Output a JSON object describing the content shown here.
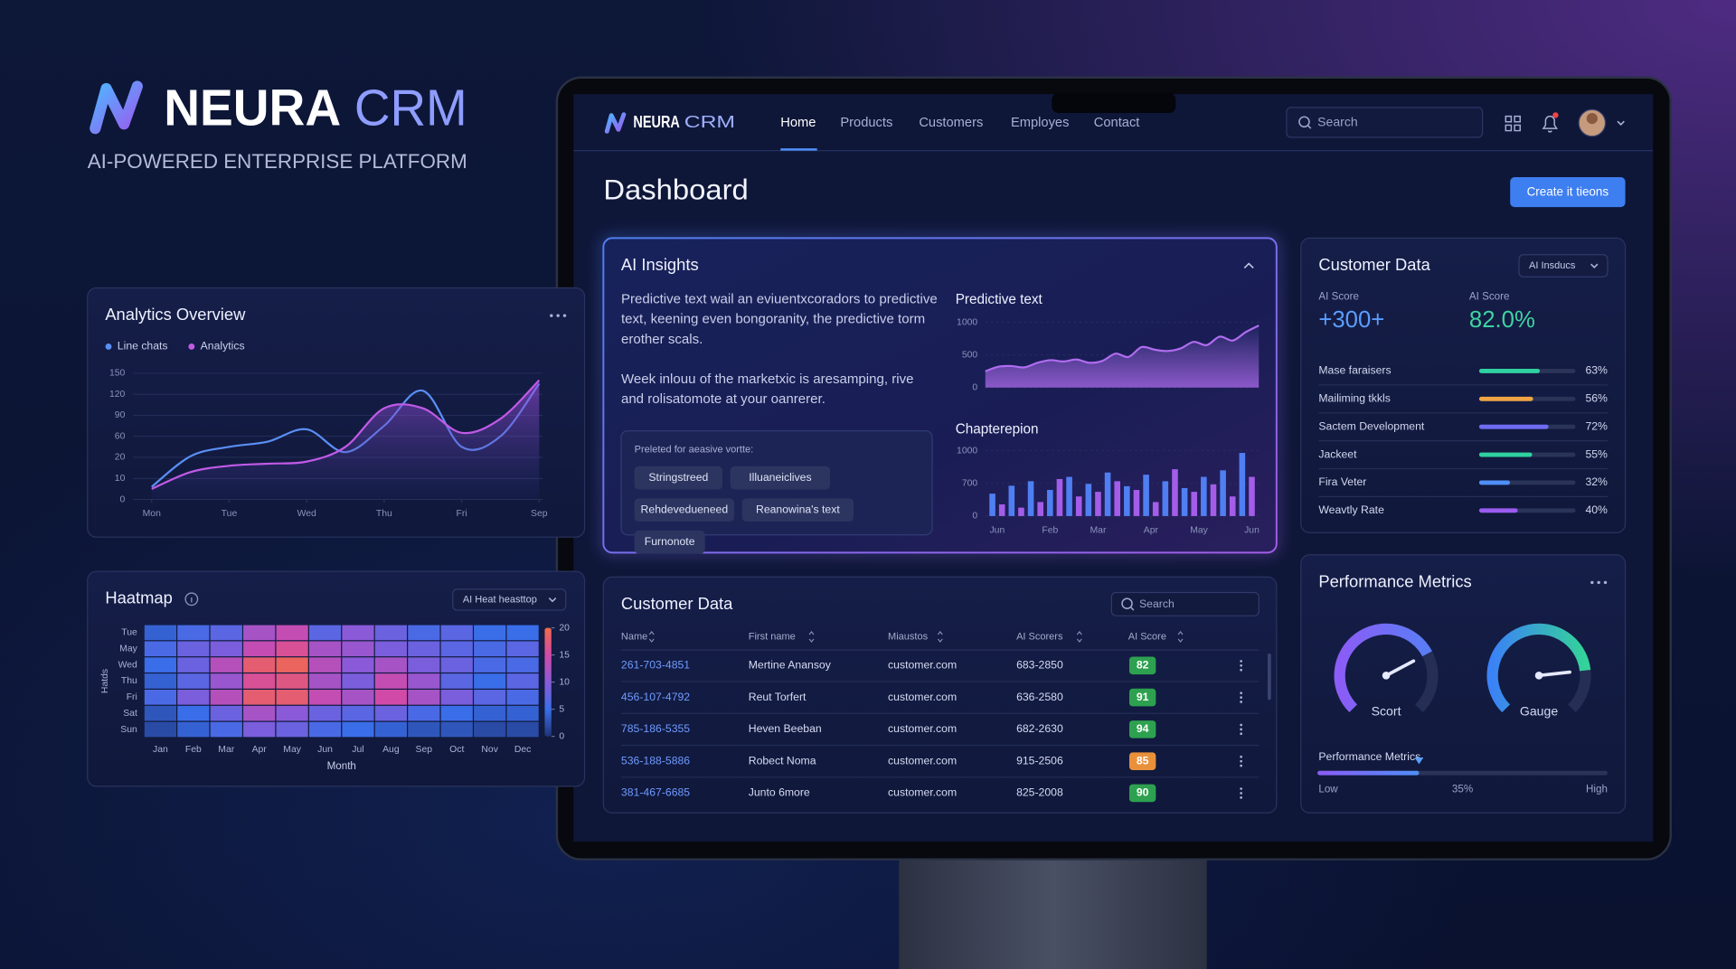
{
  "brand": {
    "name": "NEURA",
    "accent": "CRM",
    "tagline": "AI-POWERED ENTERPRISE PLATFORM"
  },
  "nav": {
    "brand": "NEURA",
    "accent": "CRM",
    "items": [
      "Home",
      "Products",
      "Customers",
      "Employes",
      "Contact"
    ],
    "search": "Search"
  },
  "page": {
    "title": "Dashboard",
    "button": "Create it tieons"
  },
  "insights": {
    "title": "AI Insights",
    "paragraphs": [
      "Predictive text wail an eviuentxcoradors to predictive text, keening even bongoranity, the predictive torm erother scals.",
      "Week inlouu of the marketxic is aresamping, rive and rolisatomote at your oanrerer."
    ],
    "prompt": "Preleted for aeasive vortte:",
    "chips": [
      "Stringstreed",
      "Illuaneiclives",
      "Rehdevedueneed",
      "Reanowina's text",
      "Furnonote"
    ]
  },
  "customer_panel": {
    "title": "Customer Data",
    "dropdown": "AI Insducs",
    "stats": [
      {
        "label": "AI Score",
        "value": "+300+",
        "color": "#5b9dff"
      },
      {
        "label": "AI Score",
        "value": "82.0%",
        "color": "#3fd3a2"
      }
    ],
    "xlim": [
      0,
      100
    ],
    "rows": [
      {
        "name": "Mase faraisers",
        "value": 63,
        "value_label": "63%",
        "color": "#2fd1a0"
      },
      {
        "name": "Mailiming tkkls",
        "value": 56,
        "value_label": "56%",
        "color": "#f0a545"
      },
      {
        "name": "Sactem Development",
        "value": 72,
        "value_label": "72%",
        "color": "#6f6cf2"
      },
      {
        "name": "Jackeet",
        "value": 55,
        "value_label": "55%",
        "color": "#2fd1a0"
      },
      {
        "name": "Fira Veter",
        "value": 32,
        "value_label": "32%",
        "color": "#4f8ff7"
      },
      {
        "name": "Weavtly Rate",
        "value": 40,
        "value_label": "40%",
        "color": "#9a5cf0"
      }
    ]
  },
  "table": {
    "title": "Customer Data",
    "search": "Search",
    "headers": [
      "Name",
      "First name",
      "Miaustos",
      "AI Scorers",
      "AI Score"
    ],
    "rows": [
      [
        "261-703-4851",
        "Mertine Anansoy",
        "customer.com",
        "683-2850",
        82
      ],
      [
        "456-107-4792",
        "Reut Torfert",
        "customer.com",
        "636-2580",
        91
      ],
      [
        "785-186-5355",
        "Heven Beeban",
        "customer.com",
        "682-2630",
        94
      ],
      [
        "536-188-5886",
        "Robect Noma",
        "customer.com",
        "915-2506",
        85
      ],
      [
        "381-467-6685",
        "Junto 6more",
        "customer.com",
        "825-2008",
        90
      ]
    ],
    "badge_colors": [
      "#2da14f",
      "#2da14f",
      "#2da14f",
      "#e8913a",
      "#2da14f"
    ]
  },
  "performance": {
    "title": "Performance Metrics",
    "lim": [
      0,
      100
    ],
    "gauges": [
      {
        "label": "Scort",
        "value": 73,
        "colors": [
          "#8b5cf6",
          "#5a7df5"
        ]
      },
      {
        "label": "Gauge",
        "value": 81,
        "colors": [
          "#3b82f6",
          "#34d399"
        ]
      }
    ],
    "slider": {
      "label": "Performance Metrics",
      "value": 35,
      "value_label": "35%",
      "low": "Low",
      "high": "High",
      "colors": [
        "#8b5cf6",
        "#4f8ff7"
      ]
    }
  },
  "chart_data": [
    {
      "type": "line",
      "title": "Analytics Overview",
      "x": [
        0,
        0.5,
        1,
        1.5,
        2,
        2.5,
        3,
        3.5,
        4,
        4.5,
        5
      ],
      "xlim": [
        0,
        5
      ],
      "xticks": [
        {
          "value": 0,
          "label": "Mon"
        },
        {
          "value": 1,
          "label": "Tue"
        },
        {
          "value": 2,
          "label": "Wed"
        },
        {
          "value": 3,
          "label": "Thu"
        },
        {
          "value": 4,
          "label": "Fri"
        },
        {
          "value": 5,
          "label": "Sep"
        }
      ],
      "ylim": [
        0,
        150
      ],
      "yticks": [
        0,
        10,
        20,
        60,
        90,
        120,
        150
      ],
      "grid": true,
      "series": [
        {
          "name": "Line chats",
          "color": "#5a8ff5",
          "fill": false,
          "values": [
            6,
            22,
            40,
            50,
            70,
            30,
            75,
            125,
            40,
            60,
            135
          ]
        },
        {
          "name": "Analytics",
          "color": "#c05ae6",
          "fill": true,
          "values": [
            5,
            13,
            16,
            17,
            18,
            40,
            100,
            100,
            65,
            85,
            140
          ]
        }
      ]
    },
    {
      "type": "area",
      "title": "Predictive text",
      "ylim": [
        0,
        1000
      ],
      "yticks": [
        0,
        500,
        1000
      ],
      "grid": true,
      "color": "#b06cf0",
      "values": [
        250,
        320,
        330,
        310,
        380,
        420,
        400,
        430,
        380,
        410,
        520,
        470,
        620,
        580,
        560,
        600,
        700,
        650,
        780,
        720,
        850,
        950
      ]
    },
    {
      "type": "bar",
      "title": "Chapterepion",
      "xlim": [
        -0.5,
        27.5
      ],
      "xticks": [
        {
          "value": 0.5,
          "label": "Jun"
        },
        {
          "value": 6,
          "label": "Feb"
        },
        {
          "value": 11,
          "label": "Mar"
        },
        {
          "value": 16.5,
          "label": "Apr"
        },
        {
          "value": 21.5,
          "label": "May"
        },
        {
          "value": 27,
          "label": "Jun"
        }
      ],
      "ylim": [
        0,
        1000
      ],
      "yticks": [
        0,
        700,
        1000
      ],
      "grid": true,
      "series": [
        {
          "color": "#4f7ff2",
          "x": [
            0,
            2,
            4,
            6,
            8,
            10,
            12,
            14,
            16,
            18,
            20,
            22,
            24,
            26
          ],
          "values": [
            480,
            650,
            720,
            560,
            760,
            690,
            800,
            640,
            780,
            720,
            600,
            760,
            820,
            980
          ]
        },
        {
          "color": "#a35de8",
          "x": [
            1,
            3,
            5,
            7,
            9,
            11,
            13,
            15,
            17,
            19,
            21,
            23,
            25,
            27
          ],
          "values": [
            250,
            180,
            300,
            740,
            420,
            520,
            720,
            560,
            300,
            830,
            520,
            680,
            420,
            760
          ]
        }
      ]
    },
    {
      "type": "heatmap",
      "title": "Haatmap",
      "dropdown": "AI Heat heasttop",
      "categories": [
        "Jan",
        "Feb",
        "Mar",
        "Apr",
        "May",
        "Jun",
        "Jul",
        "Aug",
        "Sep",
        "Oct",
        "Nov",
        "Dec"
      ],
      "rows": [
        "Tue",
        "May",
        "Wed",
        "Thu",
        "Fri",
        "Sat",
        "Sun"
      ],
      "values": [
        [
          4,
          6,
          7,
          12,
          14,
          7,
          10,
          8,
          6,
          7,
          5,
          5
        ],
        [
          6,
          8,
          9,
          14,
          16,
          12,
          11,
          9,
          8,
          7,
          6,
          7
        ],
        [
          5,
          8,
          13,
          18,
          19,
          13,
          10,
          12,
          9,
          8,
          6,
          6
        ],
        [
          4,
          7,
          11,
          16,
          17,
          12,
          9,
          14,
          11,
          7,
          5,
          7
        ],
        [
          6,
          9,
          13,
          18,
          18,
          14,
          12,
          15,
          12,
          9,
          7,
          6
        ],
        [
          3,
          5,
          8,
          12,
          10,
          8,
          7,
          8,
          6,
          5,
          4,
          4
        ],
        [
          2,
          4,
          6,
          9,
          8,
          6,
          5,
          4,
          3,
          3,
          2,
          2
        ]
      ],
      "zlim": [
        0,
        20
      ],
      "zticks": [
        0,
        5,
        10,
        15,
        20
      ],
      "colorscale": [
        "#1f3478",
        "#3a6ee8",
        "#8a5ad8",
        "#d14aa8",
        "#f26a4a"
      ],
      "xlabel": "Month",
      "ylabel": "Hatds"
    }
  ]
}
